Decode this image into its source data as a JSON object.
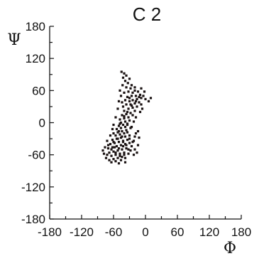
{
  "chart_data": {
    "type": "scatter",
    "title": "C 2",
    "xlabel": "Φ",
    "ylabel": "Ψ",
    "xlim": [
      -180,
      180
    ],
    "ylim": [
      -180,
      180
    ],
    "x_ticks": [
      -180,
      -120,
      -60,
      0,
      60,
      120,
      180
    ],
    "y_ticks": [
      180,
      120,
      60,
      0,
      -60,
      -120,
      -180
    ],
    "x_tick_labels": [
      "-180",
      "-120",
      "-60",
      "0",
      "60",
      "120",
      "180"
    ],
    "y_tick_labels": [
      "180",
      "120",
      "60",
      "0",
      "-60",
      "-120",
      "-180"
    ],
    "grid": false,
    "legend": "none",
    "marker_color": "#1a1212",
    "series": [
      {
        "points": [
          [
            -45,
            95
          ],
          [
            -40,
            92
          ],
          [
            -36,
            88
          ],
          [
            -42,
            84
          ],
          [
            -30,
            82
          ],
          [
            -38,
            78
          ],
          [
            -33,
            74
          ],
          [
            -26,
            70
          ],
          [
            -43,
            70
          ],
          [
            -36,
            66
          ],
          [
            -28,
            64
          ],
          [
            -20,
            60
          ],
          [
            -14,
            58
          ],
          [
            -24,
            56
          ],
          [
            -32,
            58
          ],
          [
            -40,
            56
          ],
          [
            -10,
            52
          ],
          [
            -18,
            50
          ],
          [
            -26,
            50
          ],
          [
            -34,
            48
          ],
          [
            -4,
            50
          ],
          [
            -8,
            46
          ],
          [
            -16,
            44
          ],
          [
            -24,
            42
          ],
          [
            -30,
            40
          ],
          [
            -38,
            42
          ],
          [
            -12,
            38
          ],
          [
            -20,
            36
          ],
          [
            -28,
            34
          ],
          [
            -8,
            34
          ],
          [
            -36,
            34
          ],
          [
            -42,
            30
          ],
          [
            -16,
            30
          ],
          [
            -24,
            28
          ],
          [
            -32,
            26
          ],
          [
            -40,
            22
          ],
          [
            -20,
            22
          ],
          [
            -28,
            18
          ],
          [
            -36,
            16
          ],
          [
            -44,
            14
          ],
          [
            -24,
            14
          ],
          [
            -32,
            10
          ],
          [
            -40,
            8
          ],
          [
            -48,
            6
          ],
          [
            -30,
            4
          ],
          [
            -38,
            2
          ],
          [
            -46,
            0
          ],
          [
            -34,
            -2
          ],
          [
            -42,
            -4
          ],
          [
            -50,
            -6
          ],
          [
            -38,
            -8
          ],
          [
            -46,
            -10
          ],
          [
            -54,
            -12
          ],
          [
            -36,
            -14
          ],
          [
            -44,
            -16
          ],
          [
            -52,
            -18
          ],
          [
            -60,
            -20
          ],
          [
            -40,
            -20
          ],
          [
            -48,
            -22
          ],
          [
            -56,
            -24
          ],
          [
            -30,
            -24
          ],
          [
            -38,
            -26
          ],
          [
            -46,
            -28
          ],
          [
            -54,
            -30
          ],
          [
            -62,
            -32
          ],
          [
            -34,
            -32
          ],
          [
            -42,
            -34
          ],
          [
            -50,
            -36
          ],
          [
            -58,
            -38
          ],
          [
            -66,
            -40
          ],
          [
            -30,
            -38
          ],
          [
            -38,
            -40
          ],
          [
            -46,
            -42
          ],
          [
            -54,
            -44
          ],
          [
            -62,
            -46
          ],
          [
            -70,
            -48
          ],
          [
            -36,
            -48
          ],
          [
            -44,
            -50
          ],
          [
            -52,
            -52
          ],
          [
            -60,
            -54
          ],
          [
            -68,
            -56
          ],
          [
            -40,
            -56
          ],
          [
            -48,
            -58
          ],
          [
            -56,
            -60
          ],
          [
            -64,
            -62
          ],
          [
            -72,
            -60
          ],
          [
            -44,
            -64
          ],
          [
            -52,
            -66
          ],
          [
            -60,
            -68
          ],
          [
            -68,
            -70
          ],
          [
            -56,
            -72
          ],
          [
            -64,
            -74
          ],
          [
            -50,
            -76
          ],
          [
            -20,
            -50
          ],
          [
            -14,
            -42
          ],
          [
            -22,
            -34
          ],
          [
            -18,
            -20
          ],
          [
            -12,
            -28
          ],
          [
            -26,
            -44
          ],
          [
            -74,
            -66
          ],
          [
            -78,
            -58
          ],
          [
            -70,
            -42
          ],
          [
            -22,
            -60
          ],
          [
            -16,
            -56
          ],
          [
            -46,
            -70
          ],
          [
            -38,
            -66
          ],
          [
            -32,
            -58
          ],
          [
            -28,
            -52
          ],
          [
            -26,
            -8
          ],
          [
            -22,
            2
          ],
          [
            -18,
            10
          ],
          [
            -10,
            20
          ],
          [
            -6,
            26
          ],
          [
            0,
            44
          ],
          [
            6,
            40
          ],
          [
            10,
            46
          ],
          [
            -2,
            58
          ],
          [
            -8,
            64
          ],
          [
            -46,
            50
          ],
          [
            -50,
            40
          ],
          [
            -52,
            26
          ],
          [
            -56,
            10
          ],
          [
            -60,
            -4
          ],
          [
            -62,
            -12
          ],
          [
            -66,
            -24
          ],
          [
            -72,
            -34
          ],
          [
            -76,
            -46
          ],
          [
            -80,
            -52
          ],
          [
            -42,
            -36
          ],
          [
            -34,
            -18
          ],
          [
            -28,
            -10
          ],
          [
            -48,
            -2
          ],
          [
            -40,
            12
          ],
          [
            -34,
            20
          ],
          [
            -26,
            32
          ],
          [
            -18,
            40
          ],
          [
            -12,
            48
          ],
          [
            -20,
            66
          ],
          [
            -30,
            46
          ],
          [
            -44,
            38
          ],
          [
            -48,
            60
          ],
          [
            -38,
            -74
          ],
          [
            -58,
            -46
          ],
          [
            -50,
            -48
          ],
          [
            -42,
            -44
          ],
          [
            -36,
            -42
          ],
          [
            -24,
            -36
          ],
          [
            -30,
            -30
          ],
          [
            -20,
            -26
          ],
          [
            -14,
            -16
          ],
          [
            -44,
            -26
          ],
          [
            -52,
            -30
          ],
          [
            -60,
            -36
          ],
          [
            -64,
            -50
          ],
          [
            -56,
            -56
          ],
          [
            -48,
            -62
          ],
          [
            -40,
            -60
          ],
          [
            -32,
            -50
          ],
          [
            -34,
            -4
          ],
          [
            -50,
            -16
          ]
        ]
      }
    ]
  }
}
